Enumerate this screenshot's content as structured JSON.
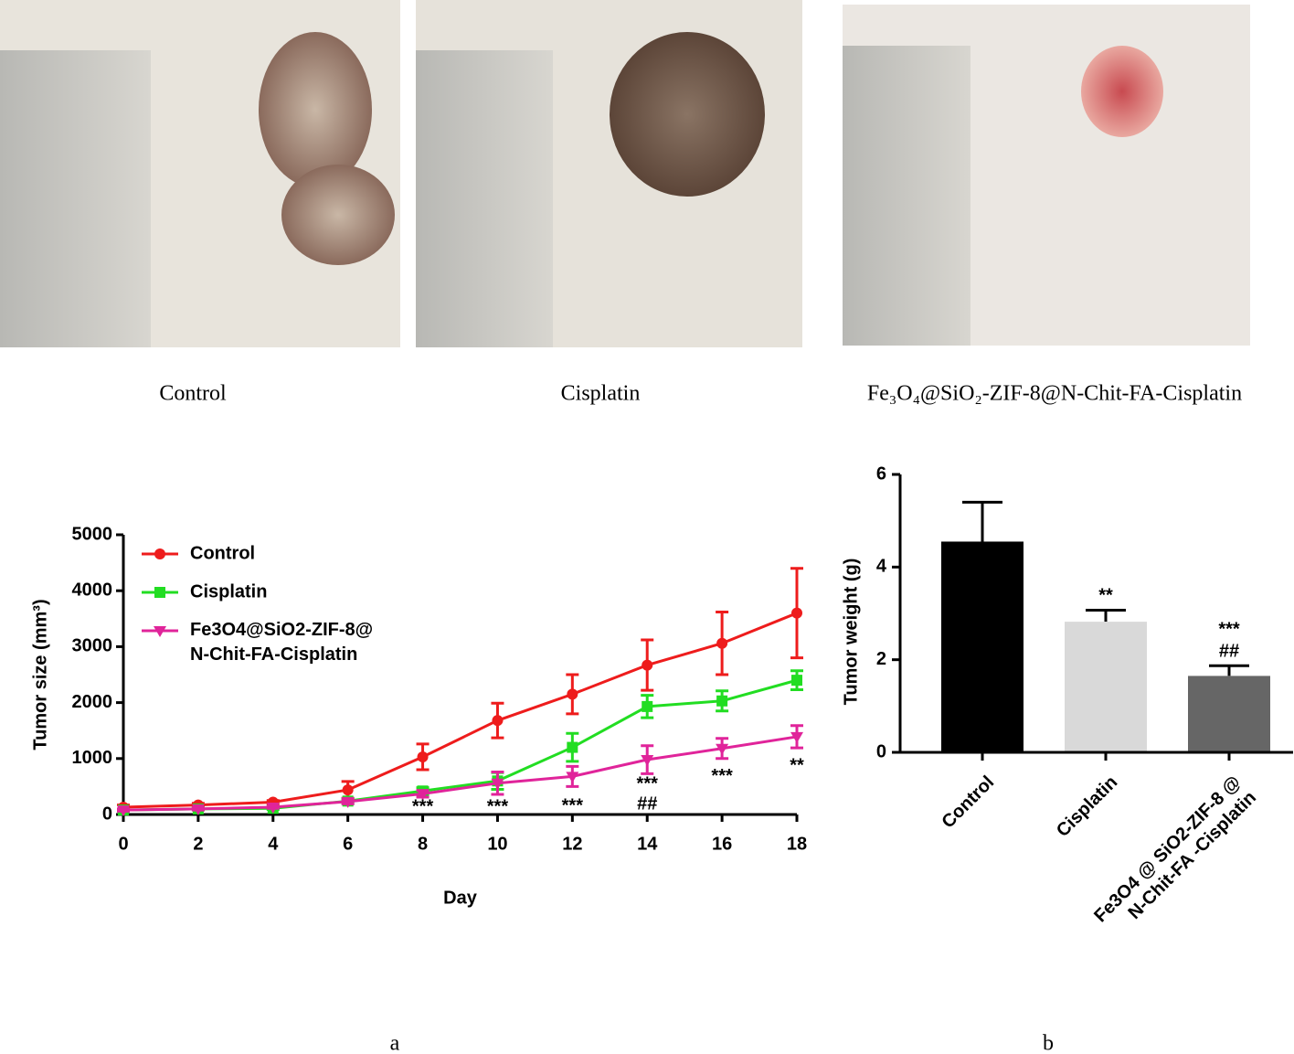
{
  "photo_captions": [
    "Control",
    "Cisplatin",
    "Fe₃O₄@SiO₂-ZIF-8@N-Chit-FA-Cisplatin"
  ],
  "panel_labels": [
    "a",
    "b"
  ],
  "chart_data": [
    {
      "type": "line",
      "x_label": "Day",
      "y_label": "Tumor size (mm³)",
      "x": [
        0,
        2,
        4,
        6,
        8,
        10,
        12,
        14,
        16,
        18
      ],
      "xlim": [
        0,
        18
      ],
      "xticks": [
        0,
        2,
        4,
        6,
        8,
        10,
        12,
        14,
        16,
        18
      ],
      "ylim": [
        0,
        5000
      ],
      "yticks": [
        0,
        1000,
        2000,
        3000,
        4000,
        5000
      ],
      "legend": "upper left",
      "series": [
        {
          "name": "Control",
          "color": "#ee1c1c",
          "marker": "circle",
          "values": [
            130,
            170,
            220,
            440,
            1030,
            1680,
            2150,
            2670,
            3060,
            3600
          ],
          "errors": [
            40,
            30,
            30,
            150,
            230,
            310,
            350,
            450,
            560,
            800
          ]
        },
        {
          "name": "Cisplatin",
          "color": "#22dd22",
          "marker": "square",
          "values": [
            80,
            100,
            110,
            240,
            420,
            600,
            1200,
            1930,
            2030,
            2400
          ],
          "errors": [
            20,
            20,
            20,
            40,
            60,
            150,
            250,
            200,
            180,
            170
          ]
        },
        {
          "name": "Fe3O4@SiO2-ZIF-8@N-Chit-FA-Cisplatin",
          "color": "#e0249a",
          "marker": "triangle-down",
          "values": [
            80,
            100,
            130,
            230,
            370,
            560,
            680,
            980,
            1180,
            1390
          ],
          "errors": [
            20,
            20,
            20,
            40,
            60,
            200,
            180,
            250,
            180,
            200
          ]
        }
      ],
      "annotations": [
        {
          "x": 8,
          "text": "***"
        },
        {
          "x": 10,
          "text": "***"
        },
        {
          "x": 12,
          "text": "***"
        },
        {
          "x": 14,
          "text": "***"
        },
        {
          "x": 14,
          "text": "##"
        },
        {
          "x": 16,
          "text": "***"
        },
        {
          "x": 18,
          "text": "**"
        }
      ]
    },
    {
      "type": "bar",
      "y_label": "Tumor weight (g)",
      "categories": [
        "Control",
        "Cisplatin",
        "Fe3O4 @ SiO2-ZIF-8 @ N-Chit-FA -Cisplatin"
      ],
      "values": [
        4.55,
        2.82,
        1.65
      ],
      "errors": [
        0.85,
        0.25,
        0.22
      ],
      "colors": [
        "#000000",
        "#d9d9d9",
        "#666666"
      ],
      "ylim": [
        0,
        6
      ],
      "yticks": [
        0,
        2,
        4,
        6
      ],
      "annotations": [
        [],
        [
          "**"
        ],
        [
          "***",
          "##"
        ]
      ]
    }
  ]
}
